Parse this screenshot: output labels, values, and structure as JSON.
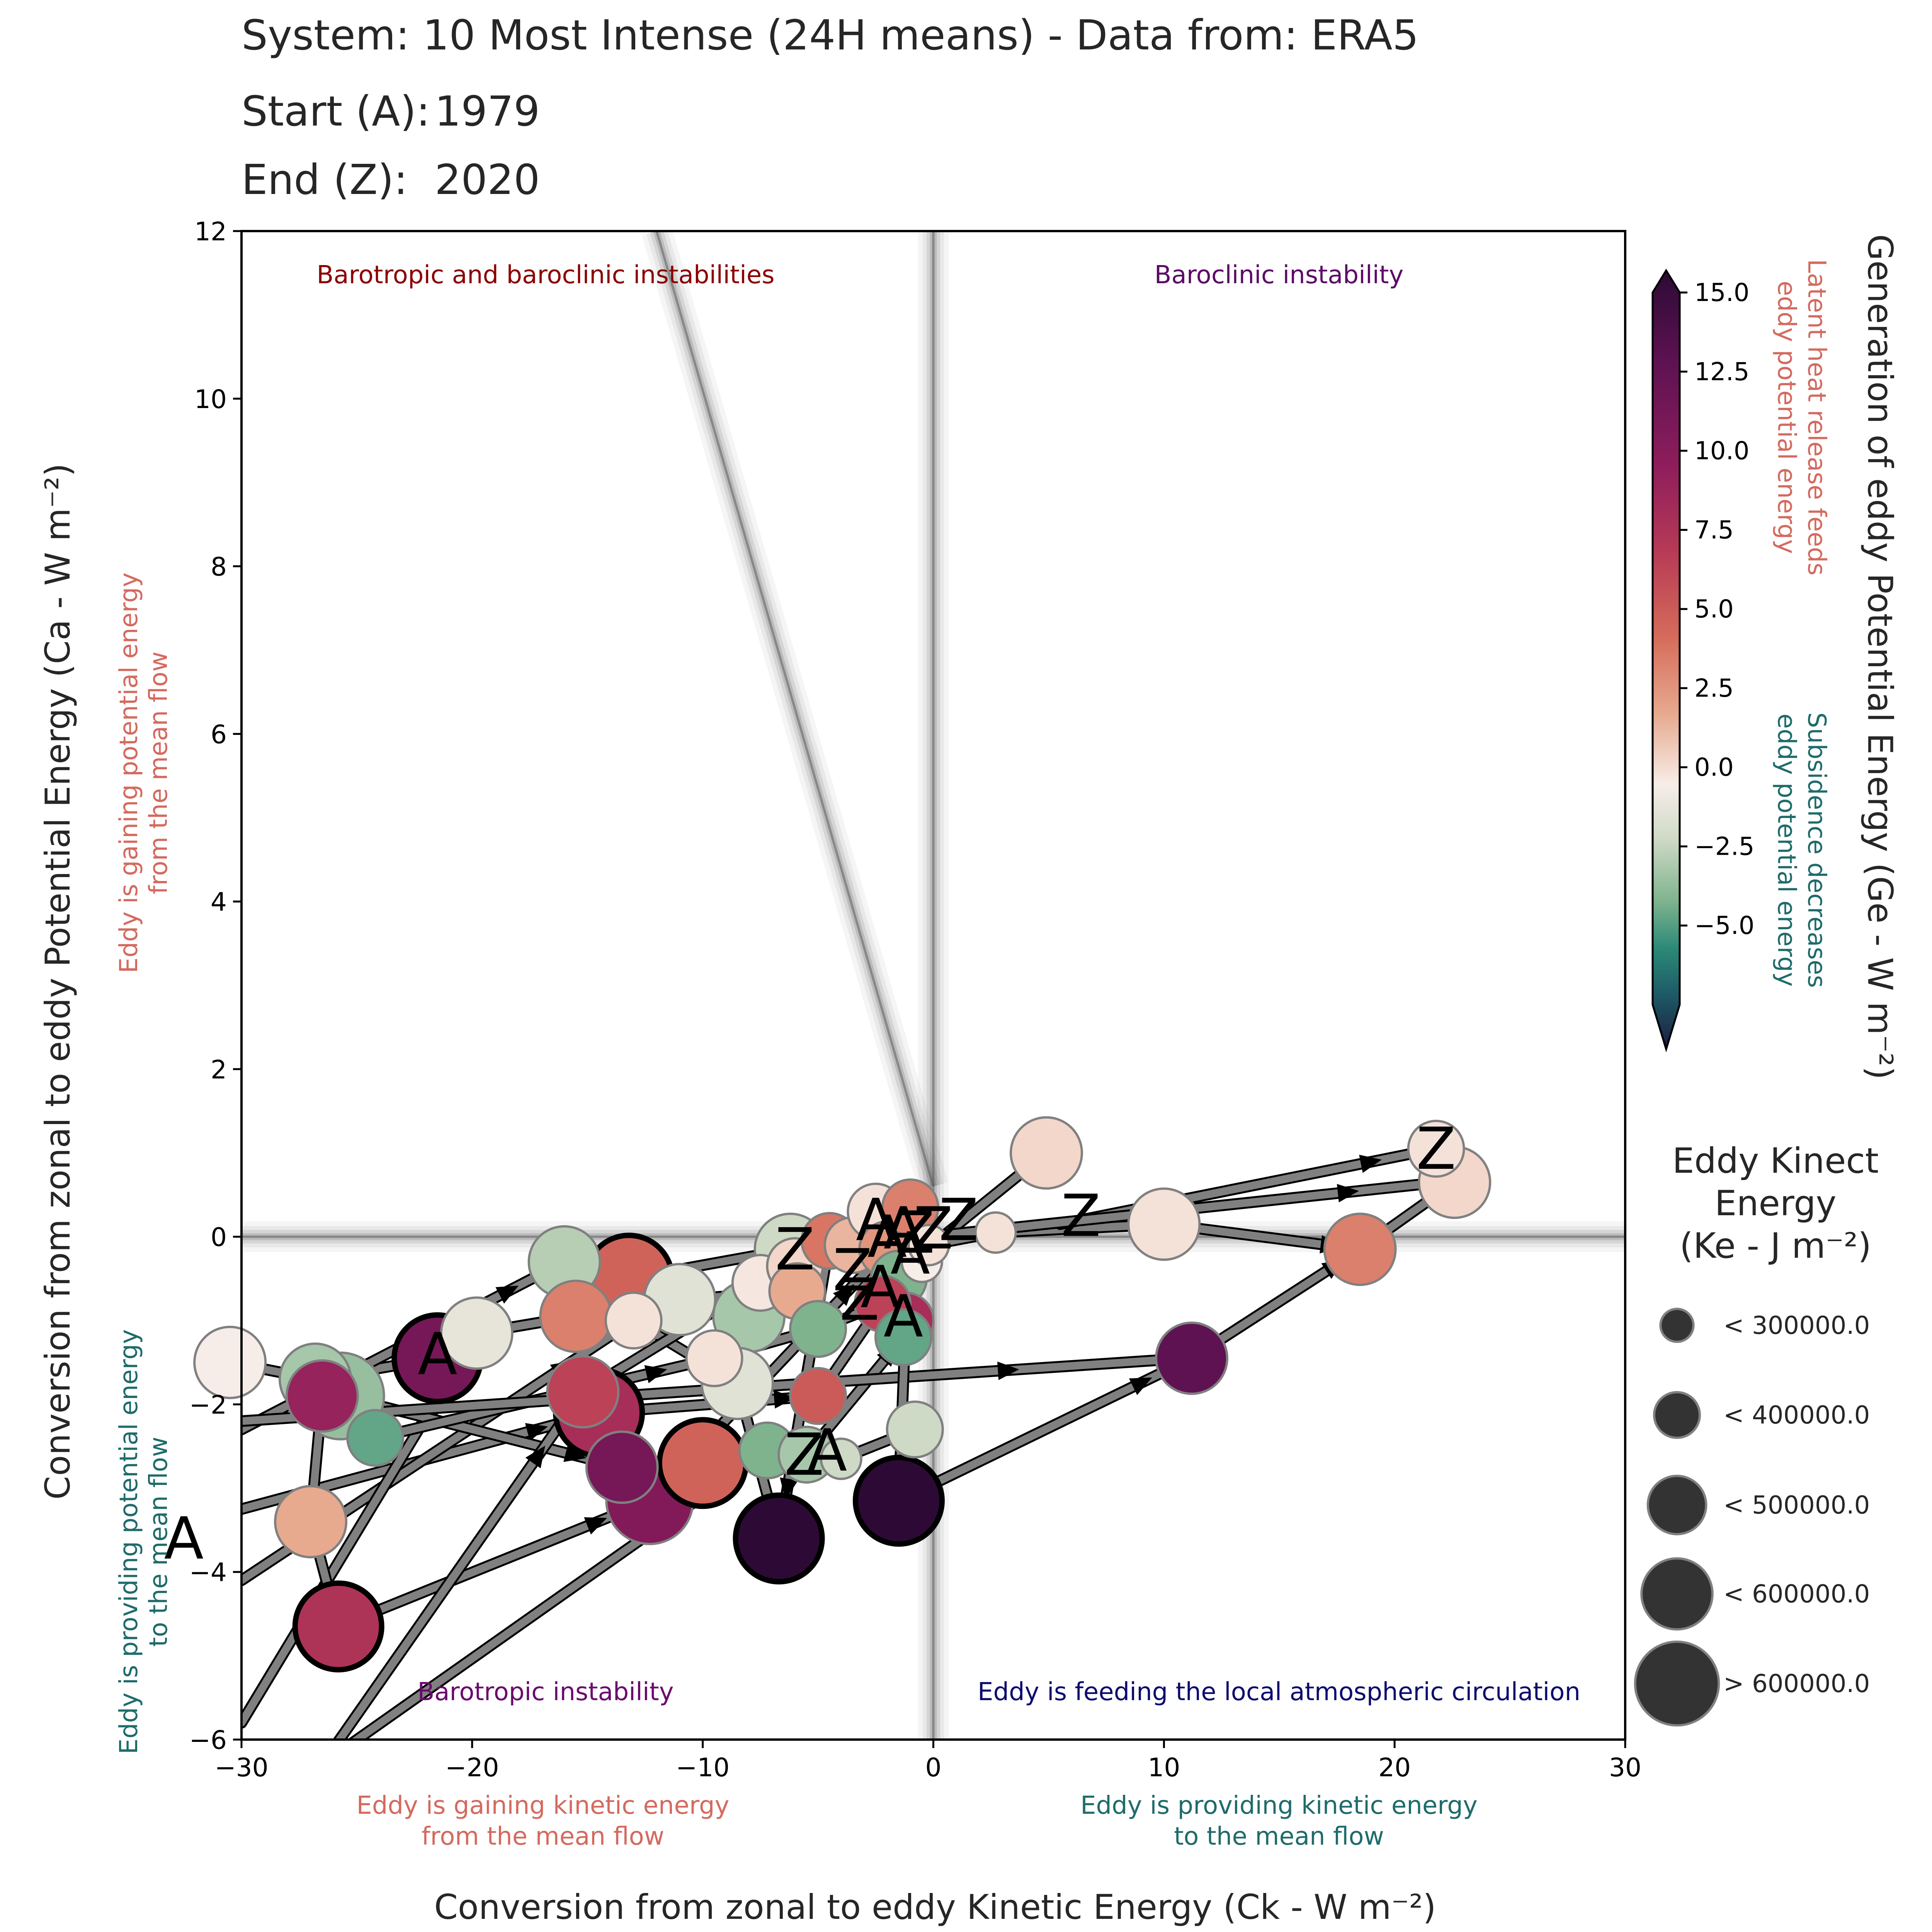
{
  "header": {
    "title": "System: 10 Most Intense (24H means) - Data from: ERA5",
    "start_label": "Start (A):",
    "start_value": "1979",
    "end_label": "End (Z):",
    "end_value": "2020"
  },
  "colors": {
    "arrow": "#808080",
    "quad_top_left": "#8b0000",
    "quad_top_right": "#5b0b66",
    "quad_bottom_left": "#6a0a6e",
    "quad_bottom_right": "#0b0b6e",
    "gain": "#d46a5f",
    "loss": "#1f6b6b"
  },
  "chart_data": {
    "type": "scatter",
    "title": "System: 10 Most Intense (24H means) - Data from: ERA5",
    "xlabel": "Conversion from zonal to eddy Kinetic Energy (Ck -  W m⁻²)",
    "ylabel": "Conversion from zonal to eddy Potential Energy (Ca -  W m⁻²)",
    "xlim": [
      -30,
      30
    ],
    "ylim": [
      -6,
      12
    ],
    "xticks": [
      "−30",
      "−20",
      "−10",
      "0",
      "10",
      "20",
      "30"
    ],
    "xtick_values": [
      -30,
      -20,
      -10,
      0,
      10,
      20,
      30
    ],
    "yticks": [
      "−6",
      "−4",
      "−2",
      "0",
      "2",
      "4",
      "6",
      "8",
      "10",
      "12"
    ],
    "ytick_values": [
      -6,
      -4,
      -2,
      0,
      2,
      4,
      6,
      8,
      10,
      12
    ],
    "quadrant_labels": {
      "top_left": "Barotropic and baroclinic instabilities",
      "top_right": "Baroclinic instability",
      "bottom_left": "Barotropic instability",
      "bottom_right": "Eddy is feeding the local atmospheric circulation"
    },
    "x_annotations": {
      "left": [
        "Eddy is gaining kinetic energy",
        "from the mean flow"
      ],
      "right": [
        "Eddy is providing kinetic energy",
        "to the mean flow"
      ]
    },
    "y_annotations": {
      "top": [
        "Eddy is gaining potential energy",
        "from the mean flow"
      ],
      "bottom": [
        "Eddy is providing potential energy",
        "to the mean flow"
      ]
    },
    "reference_lines": [
      {
        "name": "diagonal",
        "from": [
          -12,
          12
        ],
        "to": [
          0,
          0.6
        ]
      },
      {
        "name": "vertical",
        "x": 0
      },
      {
        "name": "horizontal",
        "y": 0
      }
    ],
    "colorbar": {
      "label": "Generation of eddy Potential Energy (Ge -  W m⁻²)",
      "vmin": -7.5,
      "vmax": 15,
      "ticks": [
        "15.0",
        "12.5",
        "10.0",
        "7.5",
        "5.0",
        "2.5",
        "0.0",
        "−2.5",
        "−5.0"
      ],
      "tick_values": [
        15,
        12.5,
        10,
        7.5,
        5,
        2.5,
        0,
        -2.5,
        -5
      ],
      "upper_note": [
        "Latent heat release feeds",
        "eddy potential energy"
      ],
      "lower_note": [
        "Subsidence decreases",
        "eddy potential energy"
      ]
    },
    "size_legend": {
      "title": [
        "Eddy Kinect",
        "Energy",
        "(Ke -  J m⁻²)"
      ],
      "entries": [
        "< 300000.0",
        "< 400000.0",
        "< 500000.0",
        "< 600000.0",
        "> 600000.0"
      ]
    },
    "points": [
      {
        "x": -30.5,
        "y": -1.5,
        "ge": 0.0,
        "ke": 450000
      },
      {
        "x": -26.8,
        "y": -1.7,
        "ge": -1.0,
        "ke": 480000
      },
      {
        "x": -26.5,
        "y": -1.9,
        "ge": 11.0,
        "ke": 450000
      },
      {
        "x": -25.7,
        "y": -1.9,
        "ge": -1.2,
        "ke": 500000
      },
      {
        "x": -24.2,
        "y": -2.4,
        "ge": -2.0,
        "ke": 380000
      },
      {
        "x": -27.0,
        "y": -3.4,
        "ge": 3.0,
        "ke": 450000
      },
      {
        "x": -25.8,
        "y": -4.65,
        "ge": 9.5,
        "ke": 520000,
        "bold": true
      },
      {
        "x": -21.5,
        "y": -1.45,
        "ge": 12.5,
        "ke": 520000,
        "bold": true
      },
      {
        "x": -19.8,
        "y": -1.15,
        "ge": -0.2,
        "ke": 460000
      },
      {
        "x": -16.0,
        "y": -0.3,
        "ge": -0.8,
        "ke": 480000
      },
      {
        "x": -15.5,
        "y": -0.95,
        "ge": 5.0,
        "ke": 480000
      },
      {
        "x": -13.2,
        "y": -0.5,
        "ge": 6.5,
        "ke": 500000,
        "bold": true
      },
      {
        "x": -13.0,
        "y": -1.0,
        "ge": 0.5,
        "ke": 350000
      },
      {
        "x": -11.0,
        "y": -0.75,
        "ge": -0.3,
        "ke": 480000
      },
      {
        "x": -8.0,
        "y": -0.95,
        "ge": -1.0,
        "ke": 440000
      },
      {
        "x": -7.5,
        "y": -0.55,
        "ge": 0.3,
        "ke": 340000
      },
      {
        "x": -6.0,
        "y": -0.35,
        "ge": 1.0,
        "ke": 380000
      },
      {
        "x": -5.9,
        "y": -0.65,
        "ge": 3.0,
        "ke": 360000
      },
      {
        "x": -6.2,
        "y": -0.15,
        "ge": -0.5,
        "ke": 400000
      },
      {
        "x": -4.5,
        "y": -0.05,
        "ge": 5.5,
        "ke": 360000
      },
      {
        "x": -3.5,
        "y": -0.1,
        "ge": 2.5,
        "ke": 380000
      },
      {
        "x": -2.5,
        "y": 0.3,
        "ge": 0.5,
        "ke": 340000
      },
      {
        "x": -2.0,
        "y": -0.15,
        "ge": 4.0,
        "ke": 330000
      },
      {
        "x": -1.5,
        "y": -0.5,
        "ge": -1.5,
        "ke": 320000
      },
      {
        "x": -1.0,
        "y": 0.35,
        "ge": 5.0,
        "ke": 310000
      },
      {
        "x": -0.5,
        "y": -0.3,
        "ge": 0.0,
        "ke": 290000
      },
      {
        "x": -0.2,
        "y": -0.1,
        "ge": 0.5,
        "ke": 290000
      },
      {
        "x": -1.2,
        "y": -1.0,
        "ge": 10.0,
        "ke": 380000
      },
      {
        "x": -2.2,
        "y": -0.8,
        "ge": 8.5,
        "ke": 320000
      },
      {
        "x": -1.3,
        "y": -1.2,
        "ge": -2.0,
        "ke": 300000
      },
      {
        "x": -5.0,
        "y": -1.1,
        "ge": -1.5,
        "ke": 360000
      },
      {
        "x": -9.5,
        "y": -1.45,
        "ge": 0.5,
        "ke": 340000
      },
      {
        "x": -8.5,
        "y": -1.75,
        "ge": -0.3,
        "ke": 440000
      },
      {
        "x": -15.2,
        "y": -1.85,
        "ge": 8.5,
        "ke": 430000
      },
      {
        "x": -14.5,
        "y": -2.1,
        "ge": 10.0,
        "ke": 500000,
        "bold": true
      },
      {
        "x": -12.3,
        "y": -3.15,
        "ge": 12.0,
        "ke": 520000
      },
      {
        "x": -13.5,
        "y": -2.75,
        "ge": 12.5,
        "ke": 420000
      },
      {
        "x": -10.0,
        "y": -2.7,
        "ge": 6.5,
        "ke": 500000,
        "bold": true
      },
      {
        "x": -5.0,
        "y": -1.9,
        "ge": 7.0,
        "ke": 390000
      },
      {
        "x": -7.2,
        "y": -2.55,
        "ge": -1.5,
        "ke": 300000
      },
      {
        "x": -5.5,
        "y": -2.6,
        "ge": -1.0,
        "ke": 300000
      },
      {
        "x": -4.0,
        "y": -2.65,
        "ge": -0.5,
        "ke": 280000
      },
      {
        "x": -0.8,
        "y": -2.3,
        "ge": -0.5,
        "ke": 300000
      },
      {
        "x": -6.7,
        "y": -3.6,
        "ge": 15.0,
        "ke": 500000,
        "bold": true
      },
      {
        "x": -1.5,
        "y": -3.15,
        "ge": 15.5,
        "ke": 520000,
        "bold": true
      },
      {
        "x": 2.7,
        "y": 0.05,
        "ge": 0.5,
        "ke": 290000
      },
      {
        "x": 4.9,
        "y": 1.0,
        "ge": 1.0,
        "ke": 460000
      },
      {
        "x": 10.0,
        "y": 0.15,
        "ge": 0.5,
        "ke": 400000
      },
      {
        "x": 11.2,
        "y": -1.45,
        "ge": 13.5,
        "ke": 460000
      },
      {
        "x": 18.5,
        "y": -0.15,
        "ge": 5.0,
        "ke": 460000
      },
      {
        "x": 21.8,
        "y": 1.05,
        "ge": 0.5,
        "ke": 390000
      },
      {
        "x": 22.6,
        "y": 0.65,
        "ge": 1.0,
        "ke": 460000
      }
    ],
    "paths": [
      [
        [
          -21.5,
          -1.45
        ],
        [
          -26.8,
          -1.7
        ],
        [
          -30.5,
          -1.5
        ]
      ],
      [
        [
          -30,
          -2.3
        ],
        [
          -16.0,
          -0.3
        ],
        [
          -13.2,
          -0.5
        ],
        [
          -6.2,
          -0.15
        ],
        [
          -2.5,
          0.3
        ]
      ],
      [
        [
          -30,
          -3.25
        ],
        [
          -14.5,
          -2.1
        ],
        [
          -5.0,
          -1.9
        ],
        [
          -1.5,
          -0.5
        ],
        [
          -1.0,
          0.35
        ]
      ],
      [
        [
          -30,
          -4.1
        ],
        [
          -13.0,
          -1.0
        ],
        [
          -8.5,
          -1.75
        ],
        [
          -6.7,
          -3.6
        ]
      ],
      [
        [
          -30,
          -5.8
        ],
        [
          -19.8,
          -1.15
        ],
        [
          -15.5,
          -0.95
        ],
        [
          -11.0,
          -0.75
        ],
        [
          -5.9,
          -0.65
        ]
      ],
      [
        [
          -26.5,
          -1.9
        ],
        [
          -27.0,
          -3.4
        ],
        [
          -25.8,
          -4.65
        ],
        [
          -12.3,
          -3.15
        ],
        [
          -2.0,
          -0.15
        ]
      ],
      [
        [
          -25.7,
          -1.9
        ],
        [
          -13.5,
          -2.75
        ],
        [
          -10.0,
          -2.7
        ],
        [
          -4.0,
          -2.65
        ],
        [
          -0.8,
          -2.3
        ]
      ],
      [
        [
          -24.2,
          -2.4
        ],
        [
          -9.5,
          -1.45
        ],
        [
          -5.0,
          -1.1
        ],
        [
          -2.2,
          -0.8
        ],
        [
          -1.2,
          -1.0
        ]
      ],
      [
        [
          -26,
          -6.1
        ],
        [
          -15.2,
          -1.85
        ],
        [
          -7.5,
          -0.55
        ],
        [
          -3.5,
          -0.1
        ],
        [
          0.0,
          0.2
        ]
      ],
      [
        [
          -25.5,
          -6.1
        ],
        [
          -7.2,
          -2.55
        ],
        [
          -5.5,
          -2.6
        ],
        [
          -1.3,
          -1.2
        ],
        [
          -0.5,
          -0.3
        ]
      ],
      [
        [
          -1.5,
          -3.15
        ],
        [
          11.2,
          -1.45
        ],
        [
          18.5,
          -0.15
        ],
        [
          22.6,
          0.65
        ]
      ],
      [
        [
          -30,
          -2.2
        ],
        [
          11.0,
          -1.45
        ]
      ],
      [
        [
          -0.2,
          -0.1
        ],
        [
          2.7,
          0.05
        ],
        [
          10.0,
          0.15
        ],
        [
          18.5,
          -0.15
        ]
      ],
      [
        [
          -0.5,
          -0.2
        ],
        [
          4.9,
          1.0
        ]
      ],
      [
        [
          5.5,
          0.15
        ],
        [
          21.8,
          1.05
        ]
      ],
      [
        [
          -0.3,
          0.0
        ],
        [
          22.0,
          0.65
        ]
      ],
      [
        [
          -1.2,
          -1.0
        ],
        [
          -1.5,
          -3.15
        ]
      ],
      [
        [
          -4.5,
          -0.05
        ],
        [
          -6.7,
          -3.6
        ]
      ]
    ],
    "start_markers": [
      {
        "x": -21.5,
        "y": -1.4
      },
      {
        "x": -2.5,
        "y": 0.2
      },
      {
        "x": -2.0,
        "y": 0.0
      },
      {
        "x": -1.3,
        "y": 0.1
      },
      {
        "x": -1.0,
        "y": -0.2
      },
      {
        "x": -2.3,
        "y": -0.6
      },
      {
        "x": -1.3,
        "y": -0.95
      },
      {
        "x": -4.6,
        "y": -2.55
      },
      {
        "x": -32.5,
        "y": -3.6
      }
    ],
    "end_markers": [
      {
        "x": -6.0,
        "y": -0.15
      },
      {
        "x": -3.5,
        "y": -0.4
      },
      {
        "x": -0.8,
        "y": 0.05
      },
      {
        "x": 0.0,
        "y": 0.1
      },
      {
        "x": 1.1,
        "y": 0.2
      },
      {
        "x": 6.4,
        "y": 0.25
      },
      {
        "x": -3.2,
        "y": -0.75
      },
      {
        "x": -5.6,
        "y": -2.6
      },
      {
        "x": 21.8,
        "y": 1.05
      }
    ]
  }
}
